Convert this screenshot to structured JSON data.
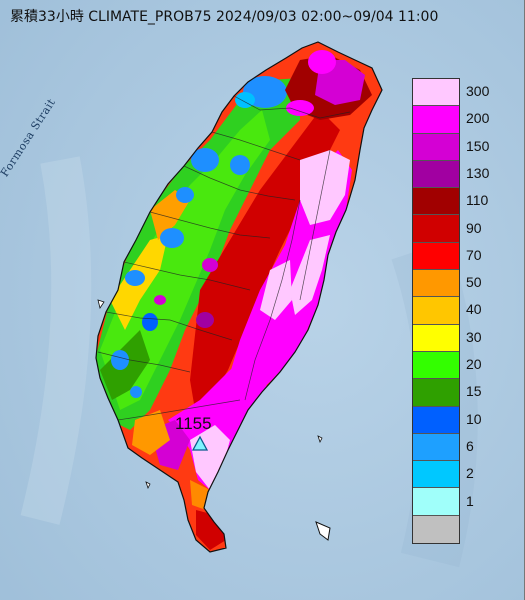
{
  "title": "累積33小時 CLIMATE_PROB75 2024/09/03 02:00~09/04 11:00",
  "water_label": "Formosa Strait",
  "max_station": {
    "value": "1155",
    "marker": "triangle-marker-icon"
  },
  "legend": {
    "items": [
      {
        "label": "300",
        "color": "#ffc8ff"
      },
      {
        "label": "200",
        "color": "#ff00ff"
      },
      {
        "label": "150",
        "color": "#d400d4"
      },
      {
        "label": "130",
        "color": "#a100a1"
      },
      {
        "label": "110",
        "color": "#a10000"
      },
      {
        "label": "90",
        "color": "#d00000"
      },
      {
        "label": "70",
        "color": "#ff0000"
      },
      {
        "label": "50",
        "color": "#ff9800"
      },
      {
        "label": "40",
        "color": "#ffc600"
      },
      {
        "label": "30",
        "color": "#ffff00"
      },
      {
        "label": "20",
        "color": "#33ff00"
      },
      {
        "label": "15",
        "color": "#2fa000"
      },
      {
        "label": "10",
        "color": "#0060ff"
      },
      {
        "label": "6",
        "color": "#1ea0ff"
      },
      {
        "label": "2",
        "color": "#00c8ff"
      },
      {
        "label": "1",
        "color": "#a0fffa"
      },
      {
        "label": "",
        "color": "#c0c0c0"
      }
    ]
  }
}
